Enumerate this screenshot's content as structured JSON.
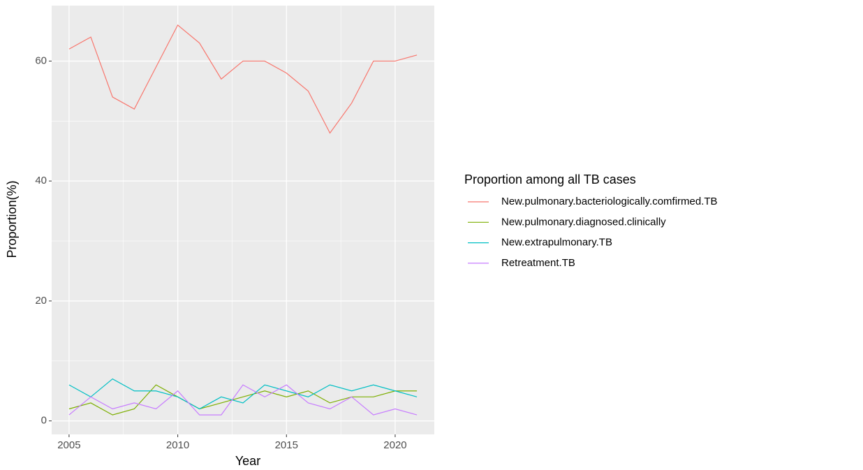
{
  "chart_data": {
    "type": "line",
    "xlabel": "Year",
    "ylabel": "Proportion(%)",
    "legend_title": "Proportion among all TB cases",
    "legend_position": "right",
    "x": [
      2005,
      2006,
      2007,
      2008,
      2009,
      2010,
      2011,
      2012,
      2013,
      2014,
      2015,
      2016,
      2017,
      2018,
      2019,
      2020,
      2021
    ],
    "series": [
      {
        "name": "New.pulmonary.bacteriologically.comfirmed.TB",
        "color": "#F8766D",
        "values": [
          62,
          64,
          54,
          52,
          59,
          66,
          63,
          57,
          60,
          60,
          58,
          55,
          48,
          53,
          60,
          60,
          61
        ]
      },
      {
        "name": "New.pulmonary.diagnosed.clinically",
        "color": "#7CAE00",
        "values": [
          2,
          3,
          1,
          2,
          6,
          4,
          2,
          3,
          4,
          5,
          4,
          5,
          3,
          4,
          4,
          5,
          5
        ]
      },
      {
        "name": "New.extrapulmonary.TB",
        "color": "#00BFC4",
        "values": [
          6,
          4,
          7,
          5,
          5,
          4,
          2,
          4,
          3,
          6,
          5,
          4,
          6,
          5,
          6,
          5,
          4
        ]
      },
      {
        "name": "Retreatment.TB",
        "color": "#C77CFF",
        "values": [
          1,
          4,
          2,
          3,
          2,
          5,
          1,
          1,
          6,
          4,
          6,
          3,
          2,
          4,
          1,
          2,
          1
        ]
      }
    ],
    "xlim": [
      2004.2,
      2021.8
    ],
    "xticks": [
      2005,
      2010,
      2015,
      2020
    ],
    "ylim": [
      -2.25,
      69.25
    ],
    "yticks": [
      0,
      20,
      40,
      60
    ],
    "x_minor_grid": [
      2007.5,
      2012.5,
      2017.5
    ],
    "y_minor_grid": [
      10,
      30,
      50
    ],
    "grid": true,
    "background": "#EBEBEB"
  }
}
